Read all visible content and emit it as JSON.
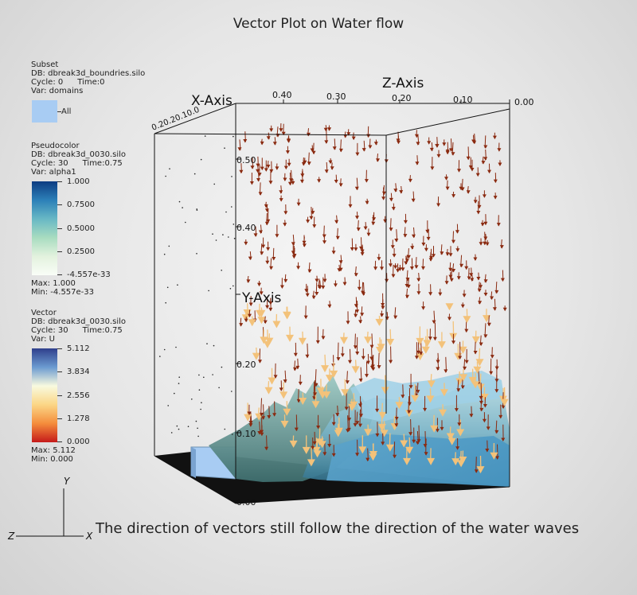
{
  "title": "Vector Plot on Water flow",
  "caption": "The direction of vectors still follow the direction of the water waves",
  "legends": {
    "subset": {
      "type_label": "Subset",
      "db": "DB: dbreak3d_boundries.silo",
      "cycle": "Cycle: 0",
      "time": "Time:0",
      "var": "Var: domains",
      "swatch_label": "All",
      "swatch_color": "#a8ccf3"
    },
    "pseudocolor": {
      "type_label": "Pseudocolor",
      "db": "DB: dbreak3d_0030.silo",
      "cycle": "Cycle: 30",
      "time": "Time:0.75",
      "var": "Var: alpha1",
      "ticks": [
        "1.000",
        "0.7500",
        "0.5000",
        "0.2500",
        "-4.557e-33"
      ],
      "max": "Max:  1.000",
      "min": "Min:  -4.557e-33",
      "colors": [
        "#0d3c82",
        "#2c80b8",
        "#68b8c5",
        "#a8dcc0",
        "#e3f2de",
        "#f9fdf7"
      ]
    },
    "vector": {
      "type_label": "Vector",
      "db": "DB: dbreak3d_0030.silo",
      "cycle": "Cycle: 30",
      "time": "Time:0.75",
      "var": "Var: U",
      "ticks": [
        "5.112",
        "3.834",
        "2.556",
        "1.278",
        "0.000"
      ],
      "max": "Max:  5.112",
      "min": "Min:  0.000",
      "colors": [
        "#2f3f8c",
        "#6b9ad0",
        "#f8fadf",
        "#fbd686",
        "#f48d3c",
        "#c51a1a"
      ]
    }
  },
  "axes": {
    "x_axis_label": "X-Axis",
    "y_axis_label": "Y-Axis",
    "z_axis_label": "Z-Axis",
    "z_ticks": [
      "0.40",
      "0.30",
      "0.20",
      "0.10",
      "0.00"
    ],
    "y_ticks": [
      "0.50",
      "0.40",
      "0.20",
      "0.10",
      "0.00"
    ],
    "x_ticks_crowded": "0.20.20.10.0"
  },
  "triad": {
    "y": "Y",
    "z": "Z",
    "x": "X"
  },
  "colors": {
    "vector_dark": "#8a2a10",
    "vector_light": "#f3c27a",
    "water_light": "#8dc0d6",
    "water_dark": "#2f6f7f",
    "water_blue": "#6aaed2"
  }
}
